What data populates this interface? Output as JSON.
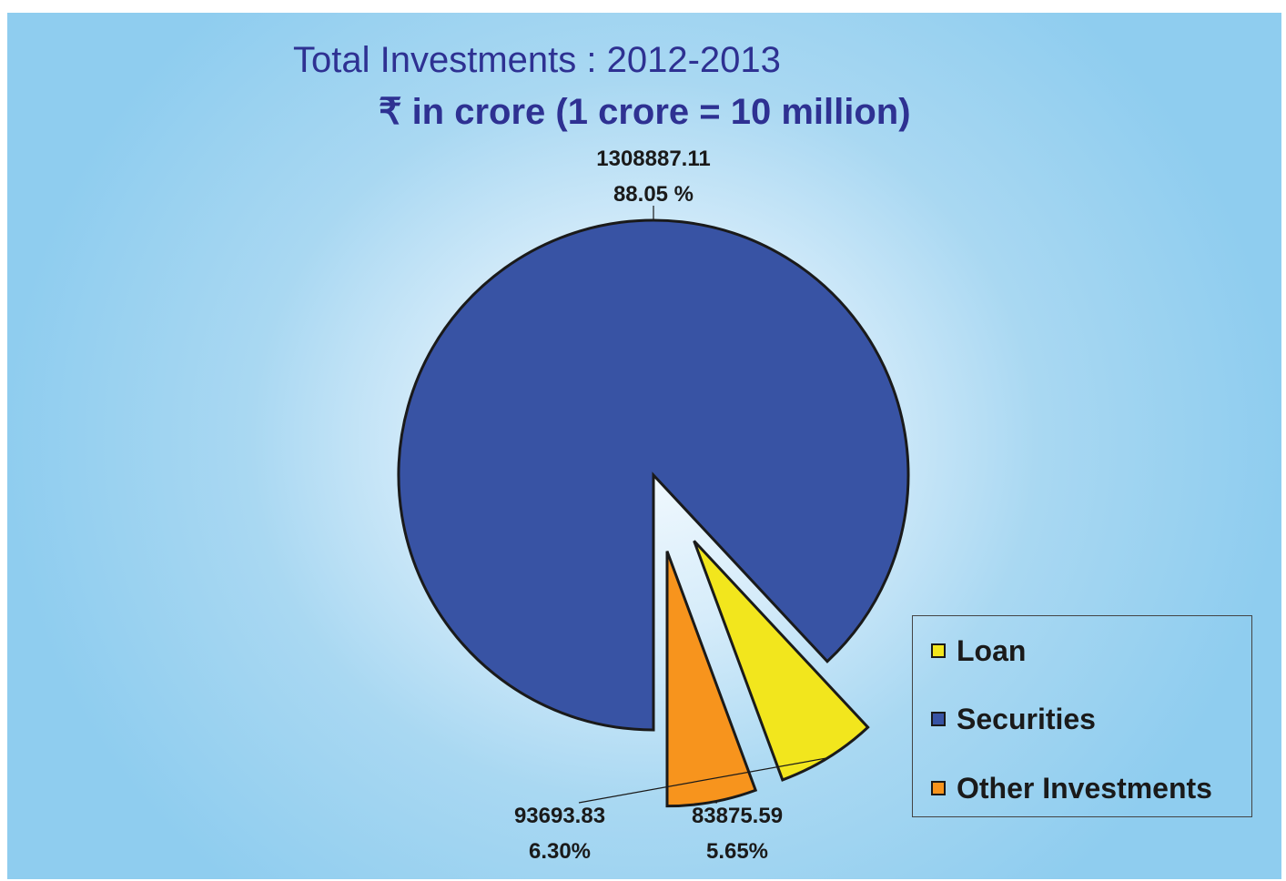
{
  "title": "Total Investments : 2012-2013",
  "subtitle": "₹ in crore (1 crore = 10 million)",
  "colors": {
    "Loan": "#f2e61d",
    "Securities": "#3853a4",
    "Other Investments": "#f7941d"
  },
  "chart_data": {
    "type": "pie",
    "title": "Total Investments : 2012-2013",
    "subtitle": "₹ in crore (1 crore = 10 million)",
    "legend_position": "bottom-right",
    "slices": [
      {
        "label": "Securities",
        "value": 1308887.11,
        "value_label": "1308887.11",
        "percent": 88.05,
        "percent_label": "88.05 %",
        "color": "#3853a4"
      },
      {
        "label": "Loan",
        "value": 93693.83,
        "value_label": "93693.83",
        "percent": 6.3,
        "percent_label": "6.30%",
        "color": "#f2e61d"
      },
      {
        "label": "Other Investments",
        "value": 83875.59,
        "value_label": "83875.59",
        "percent": 5.65,
        "percent_label": "5.65%",
        "color": "#f7941d"
      }
    ],
    "legend": [
      "Loan",
      "Securities",
      "Other Investments"
    ]
  }
}
